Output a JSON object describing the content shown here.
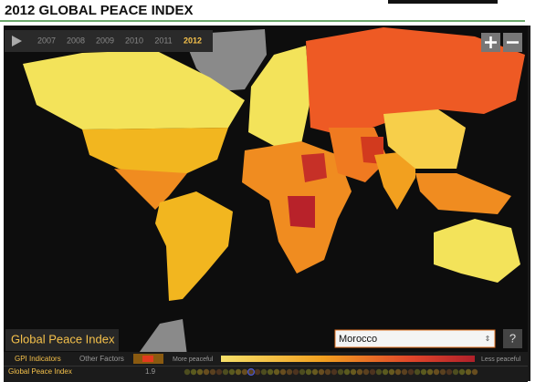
{
  "header": {
    "title": "2012 GLOBAL PEACE INDEX"
  },
  "timeline": {
    "years": [
      "2007",
      "2008",
      "2009",
      "2010",
      "2011",
      "2012"
    ]
  },
  "map": {
    "label": "Global Peace Index",
    "country_select": "Morocco",
    "help": "?"
  },
  "legend": {
    "tabs": [
      "GPI Indicators",
      "Other Factors"
    ],
    "more": "More peaceful",
    "less": "Less peaceful"
  },
  "indicator": {
    "name": "Global Peace Index",
    "score": 1.9
  }
}
